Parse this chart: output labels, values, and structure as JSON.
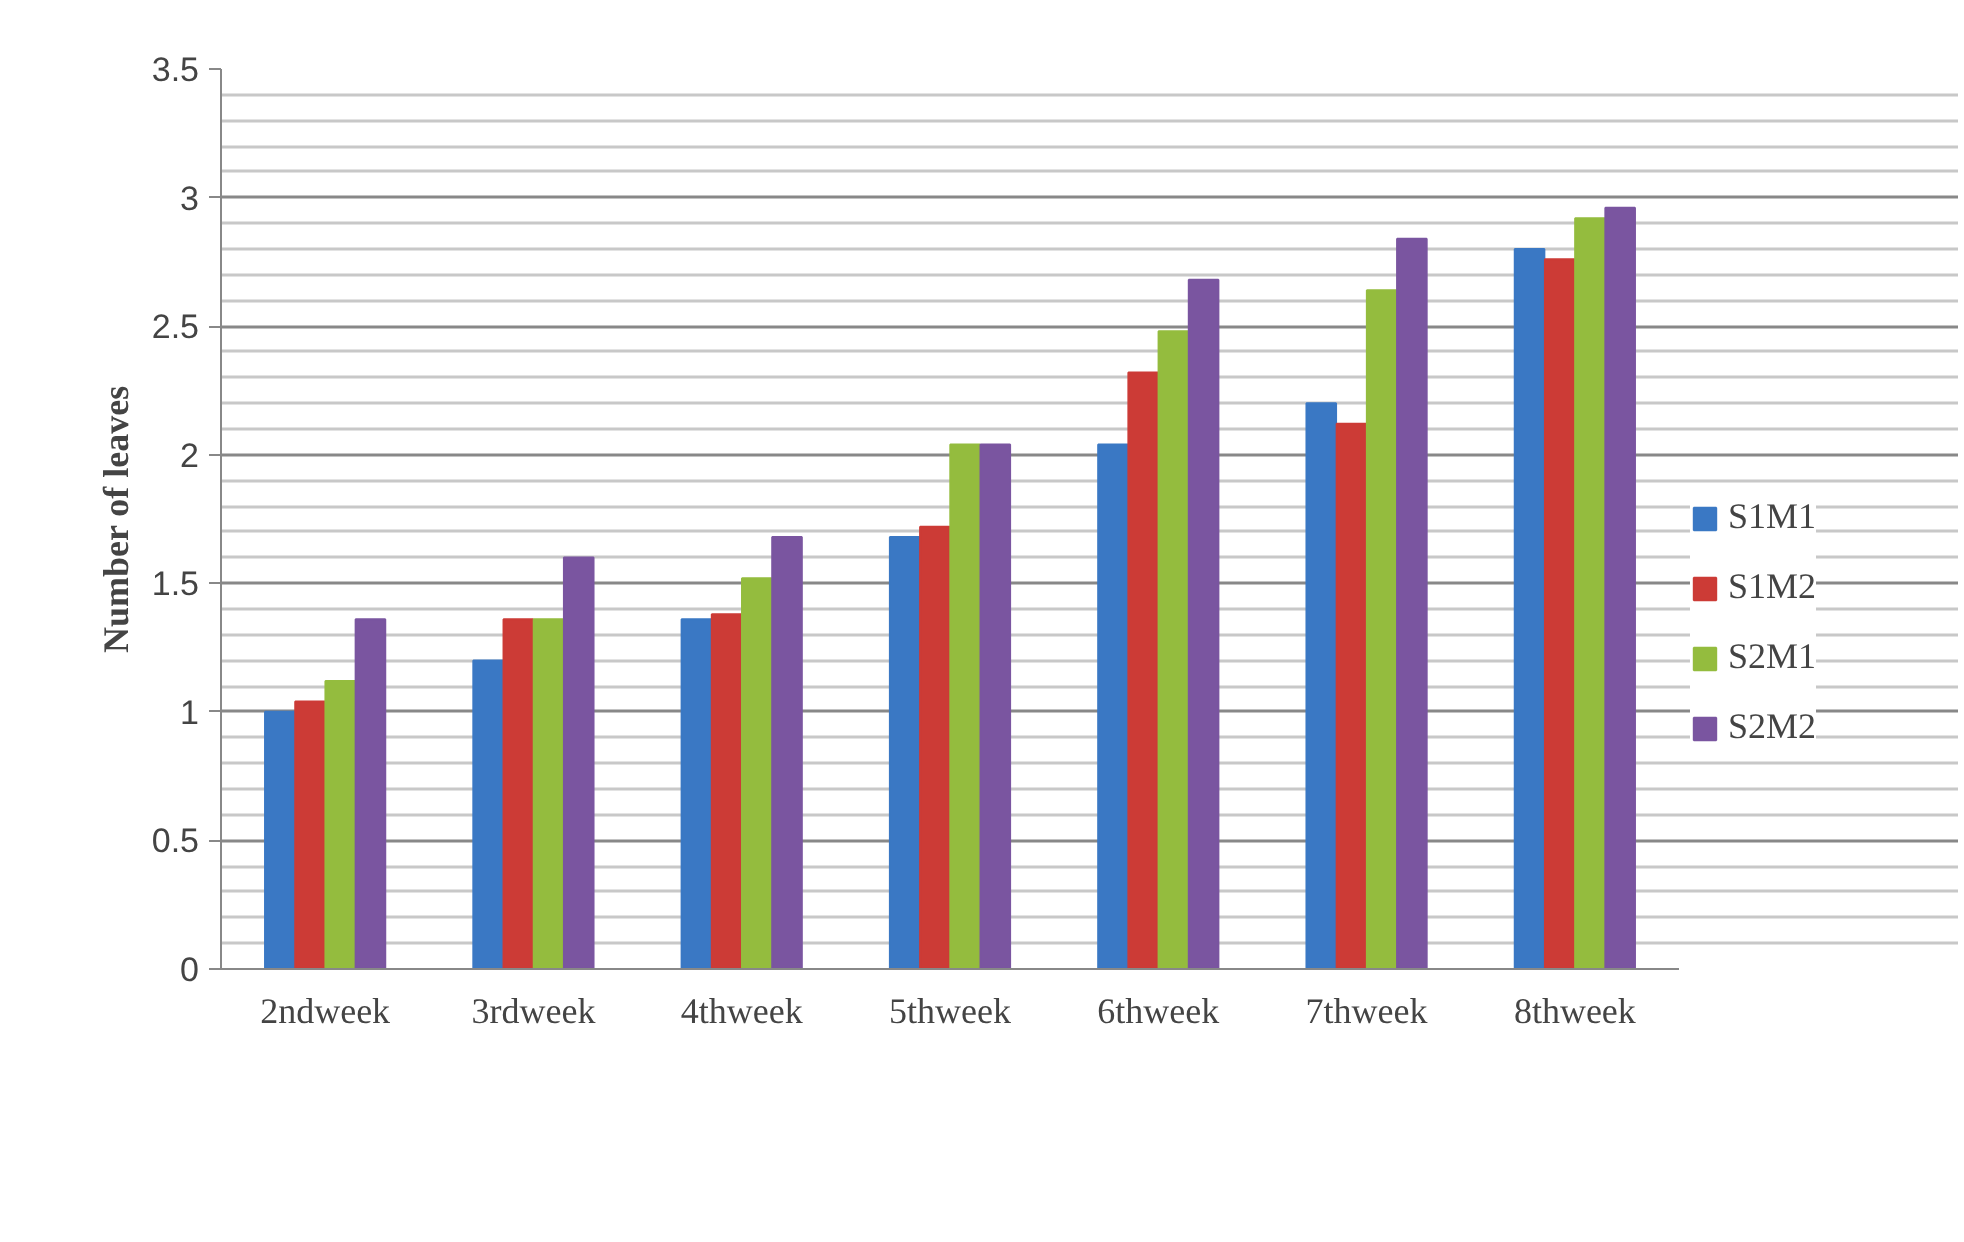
{
  "chart_data": {
    "type": "bar",
    "ylabel": "Number of leaves",
    "categories": [
      "2ndweek",
      "3rdweek",
      "4thweek",
      "5thweek",
      "6thweek",
      "7thweek",
      "8thweek"
    ],
    "series": [
      {
        "name": "S1M1",
        "color": "#3a78c4",
        "values": [
          1.0,
          1.2,
          1.36,
          1.68,
          2.04,
          2.2,
          2.8
        ]
      },
      {
        "name": "S1M2",
        "color": "#cc3b36",
        "values": [
          1.04,
          1.36,
          1.38,
          1.72,
          2.32,
          2.12,
          2.76
        ]
      },
      {
        "name": "S2M1",
        "color": "#94bc3e",
        "values": [
          1.12,
          1.36,
          1.52,
          2.04,
          2.48,
          2.64,
          2.92
        ]
      },
      {
        "name": "S2M2",
        "color": "#7a55a0",
        "values": [
          1.36,
          1.6,
          1.68,
          2.04,
          2.68,
          2.84,
          2.96
        ]
      }
    ],
    "ylim": [
      0,
      3.5
    ],
    "yticks": [
      0,
      0.5,
      1,
      1.5,
      2,
      2.5,
      3,
      3.5
    ],
    "grid": "y",
    "legend": "right"
  }
}
